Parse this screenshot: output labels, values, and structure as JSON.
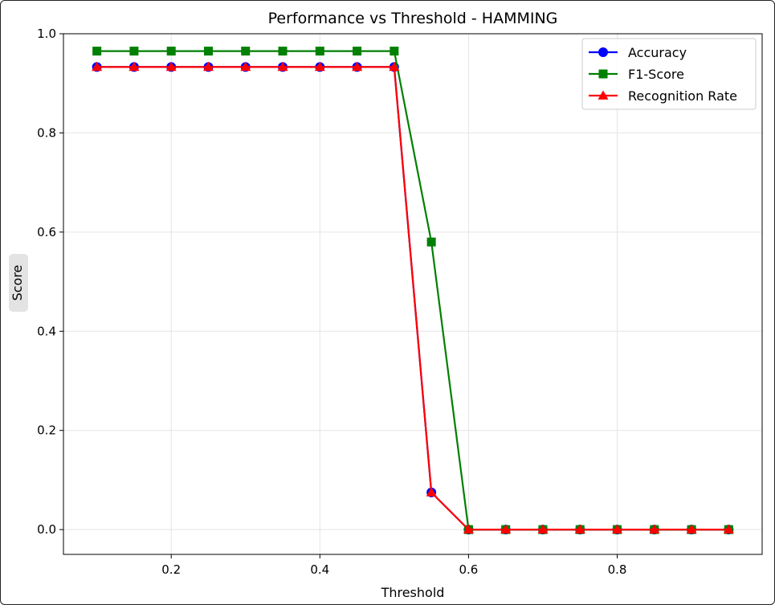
{
  "chart_data": {
    "type": "line",
    "title": "Performance vs Threshold - HAMMING",
    "xlabel": "Threshold",
    "ylabel": "Score",
    "xlim": [
      0.055,
      0.995
    ],
    "ylim": [
      -0.05,
      1.0
    ],
    "xticks": [
      0.2,
      0.4,
      0.6,
      0.8
    ],
    "yticks": [
      0.0,
      0.2,
      0.4,
      0.6,
      0.8,
      1.0
    ],
    "grid": true,
    "legend_position": "top-right",
    "x": [
      0.1,
      0.15,
      0.2,
      0.25,
      0.3,
      0.35,
      0.4,
      0.45,
      0.5,
      0.55,
      0.6,
      0.65,
      0.7,
      0.75,
      0.8,
      0.85,
      0.9,
      0.95
    ],
    "series": [
      {
        "name": "Accuracy",
        "color": "#0000ff",
        "marker": "circle",
        "values": [
          0.933,
          0.933,
          0.933,
          0.933,
          0.933,
          0.933,
          0.933,
          0.933,
          0.933,
          0.075,
          0.0,
          0.0,
          0.0,
          0.0,
          0.0,
          0.0,
          0.0,
          0.0
        ]
      },
      {
        "name": "F1-Score",
        "color": "#008000",
        "marker": "square",
        "values": [
          0.965,
          0.965,
          0.965,
          0.965,
          0.965,
          0.965,
          0.965,
          0.965,
          0.965,
          0.58,
          0.0,
          0.0,
          0.0,
          0.0,
          0.0,
          0.0,
          0.0,
          0.0
        ]
      },
      {
        "name": "Recognition Rate",
        "color": "#ff0000",
        "marker": "triangle",
        "values": [
          0.933,
          0.933,
          0.933,
          0.933,
          0.933,
          0.933,
          0.933,
          0.933,
          0.933,
          0.075,
          0.0,
          0.0,
          0.0,
          0.0,
          0.0,
          0.0,
          0.0,
          0.0
        ]
      }
    ]
  }
}
